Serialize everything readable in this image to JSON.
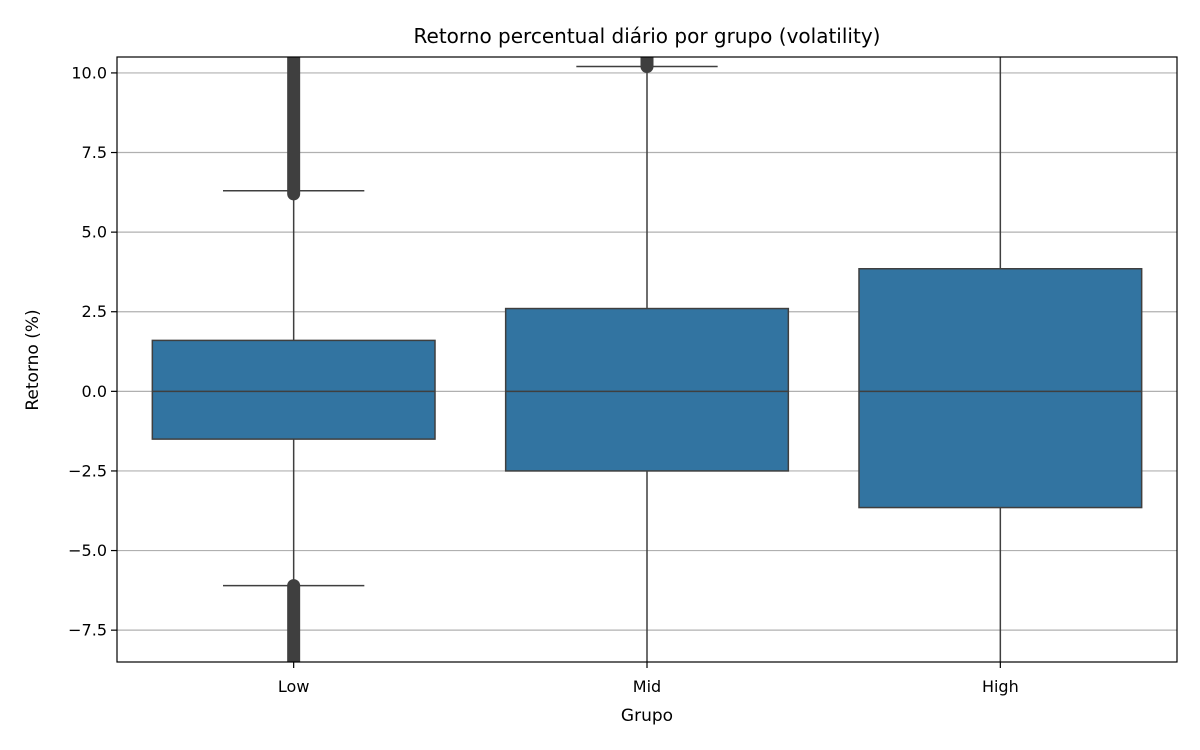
{
  "chart_data": {
    "type": "box",
    "title": "Retorno percentual diário por grupo (volatility)",
    "xlabel": "Grupo",
    "ylabel": "Retorno (%)",
    "ylim": [
      -8.5,
      10.5
    ],
    "yticks": [
      -7.5,
      -5.0,
      -2.5,
      0.0,
      2.5,
      5.0,
      7.5,
      10.0
    ],
    "ytick_labels": [
      "−7.5",
      "−5.0",
      "−2.5",
      "0.0",
      "2.5",
      "5.0",
      "7.5",
      "10.0"
    ],
    "grid": "horizontal",
    "colors": {
      "box_fill": "#3274a1",
      "box_edge": "#3f3f3f",
      "grid": "#b0b0b0"
    },
    "categories": [
      "Low",
      "Mid",
      "High"
    ],
    "boxes": [
      {
        "category": "Low",
        "q1": -1.5,
        "median": 0.0,
        "q3": 1.6,
        "whisker_low": -6.1,
        "whisker_high": 6.3,
        "outliers_high": [
          6.2,
          10.5
        ],
        "outliers_low": [
          -6.1,
          -8.5
        ]
      },
      {
        "category": "Mid",
        "q1": -2.5,
        "median": 0.0,
        "q3": 2.6,
        "whisker_low": -8.5,
        "whisker_high": 10.2,
        "outliers_high": [
          10.2,
          10.5
        ],
        "outliers_low": []
      },
      {
        "category": "High",
        "q1": -3.65,
        "median": 0.0,
        "q3": 3.85,
        "whisker_low": -8.5,
        "whisker_high": 10.5,
        "outliers_high": [],
        "outliers_low": []
      }
    ]
  }
}
